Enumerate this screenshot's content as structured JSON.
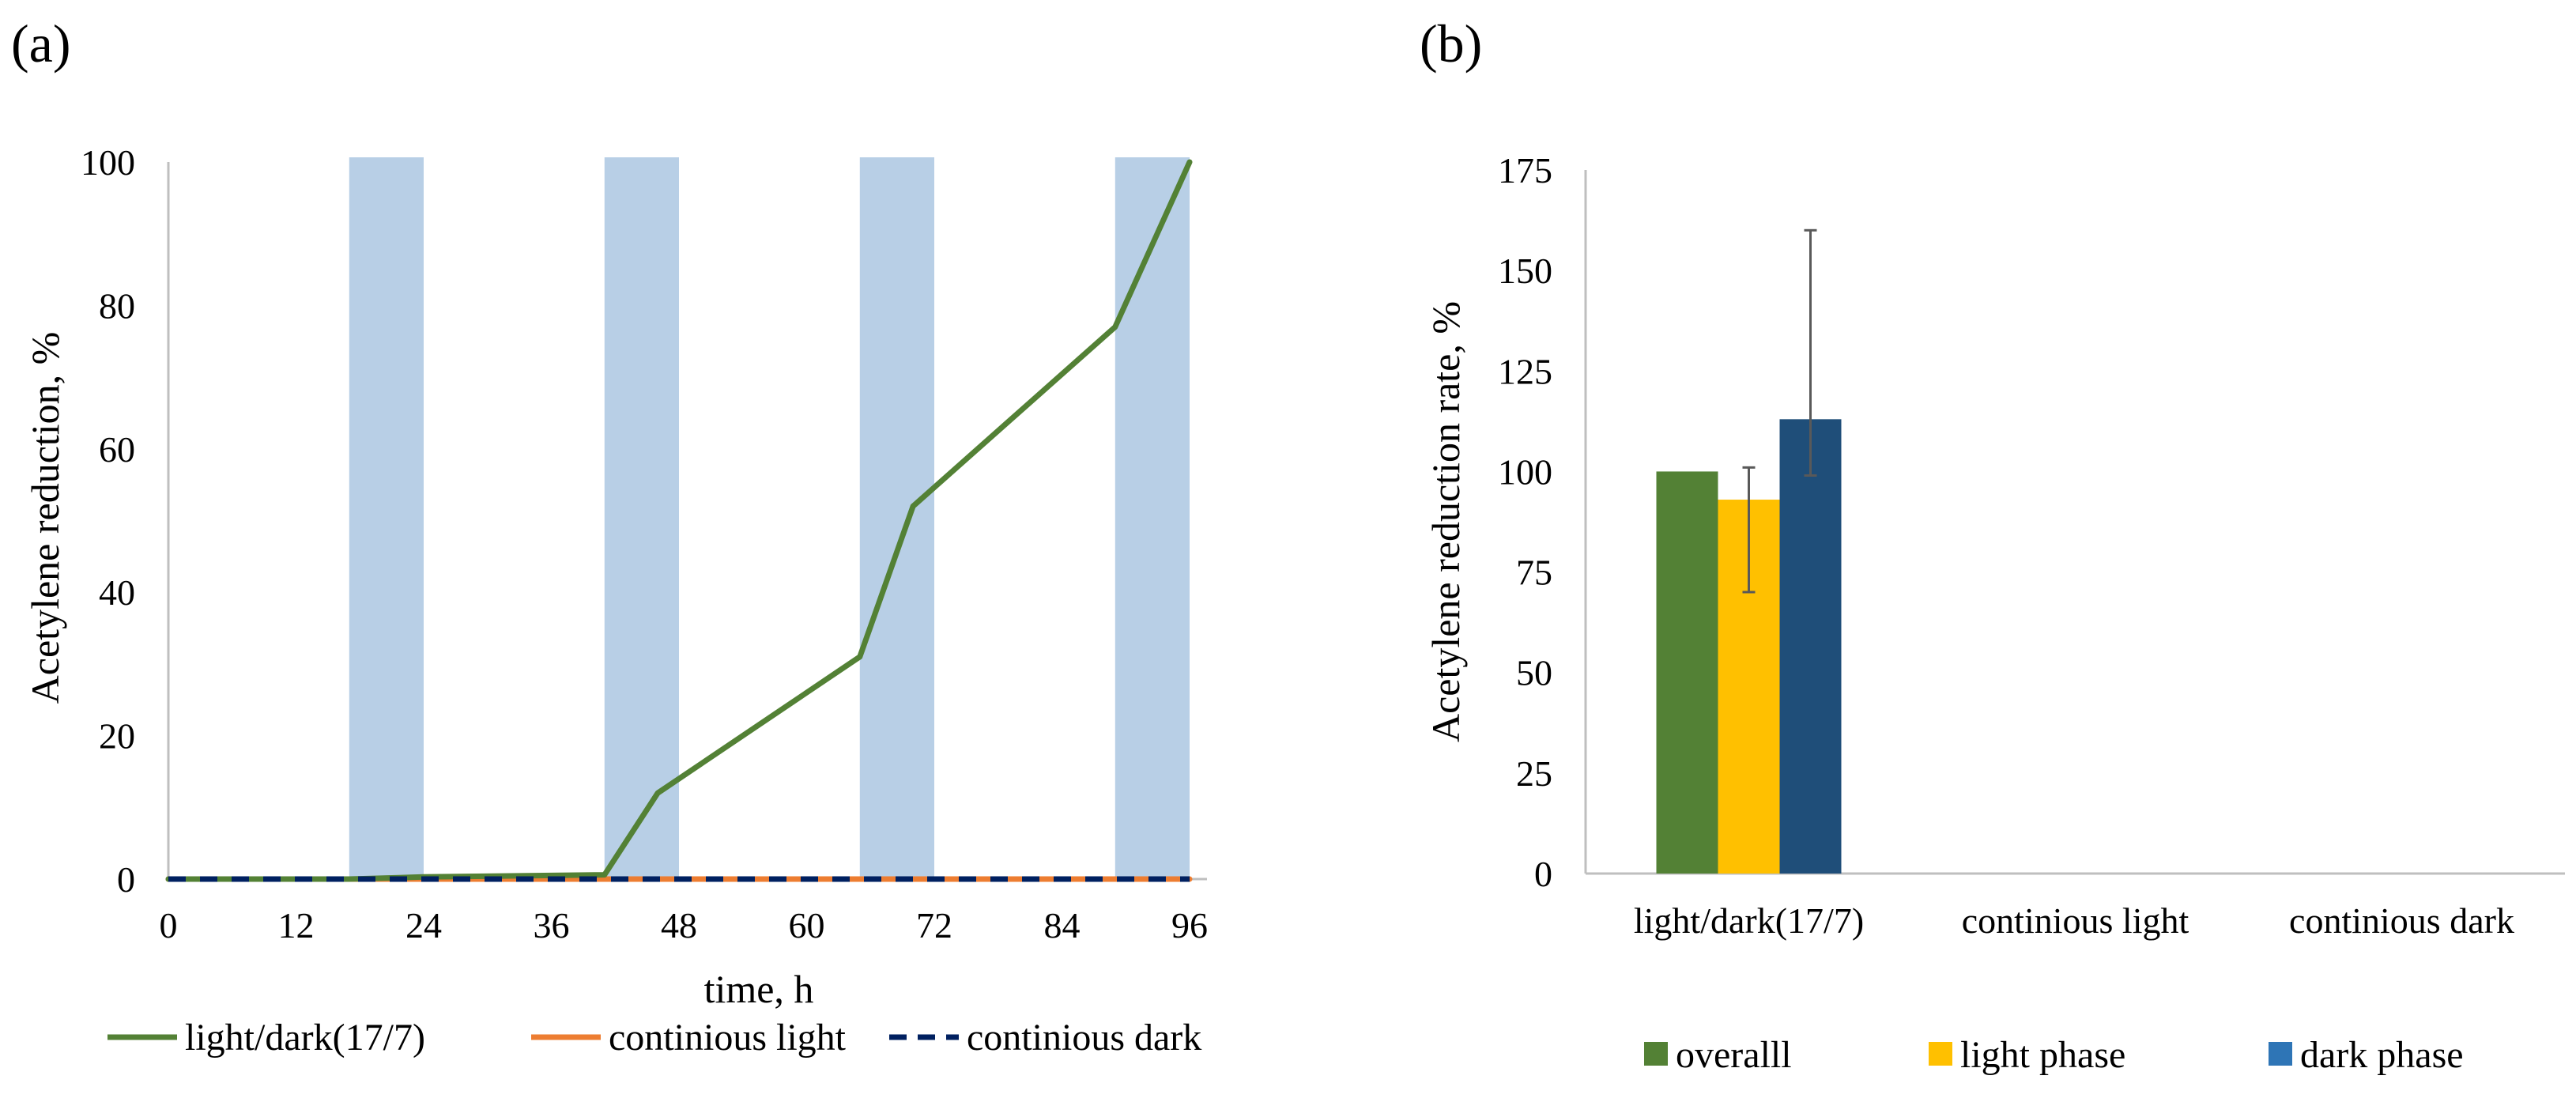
{
  "chart_data": [
    {
      "panel_label": "(a)",
      "type": "line",
      "xlabel": "time, h",
      "ylabel": "Acetylene reduction, %",
      "xlim": [
        0,
        96
      ],
      "ylim": [
        0,
        100
      ],
      "xticks": [
        0,
        12,
        24,
        36,
        48,
        60,
        72,
        84,
        96
      ],
      "yticks": [
        0,
        20,
        40,
        60,
        80,
        100
      ],
      "dark_periods": [
        [
          17,
          24
        ],
        [
          41,
          48
        ],
        [
          65,
          72
        ],
        [
          89,
          96
        ]
      ],
      "series": [
        {
          "name": "light/dark(17/7)",
          "color": "#538135",
          "dash": "solid",
          "x": [
            0,
            17,
            24,
            41,
            46,
            65,
            70,
            89,
            96
          ],
          "y": [
            0,
            0,
            0.3,
            0.6,
            12,
            31,
            52,
            77,
            100
          ]
        },
        {
          "name": "continious light",
          "color": "#ED7D31",
          "dash": "solid",
          "x": [
            0,
            96
          ],
          "y": [
            0,
            0
          ]
        },
        {
          "name": "continious dark",
          "color": "#002060",
          "dash": "dashed",
          "x": [
            0,
            96
          ],
          "y": [
            0,
            0
          ]
        }
      ],
      "legend": "bottom"
    },
    {
      "panel_label": "(b)",
      "type": "bar",
      "ylabel": "Acetylene reduction rate, %",
      "ylim": [
        0,
        175
      ],
      "yticks": [
        0,
        25,
        50,
        75,
        100,
        125,
        150,
        175
      ],
      "categories": [
        "light/dark(17/7)",
        "continious light",
        "continious dark"
      ],
      "series": [
        {
          "name": "overalll",
          "color": "#538135",
          "values": [
            100,
            0,
            0
          ],
          "error": [
            null,
            null,
            null
          ]
        },
        {
          "name": "light phase",
          "color": "#FFC000",
          "values": [
            93,
            0,
            0
          ],
          "error": [
            [
              70,
              101
            ],
            null,
            null
          ]
        },
        {
          "name": "dark phase",
          "color": "#1F4E79",
          "legend_color": "#2E75B6",
          "values": [
            113,
            0,
            0
          ],
          "error": [
            [
              99,
              160
            ],
            null,
            null
          ]
        }
      ],
      "legend": "bottom"
    }
  ]
}
